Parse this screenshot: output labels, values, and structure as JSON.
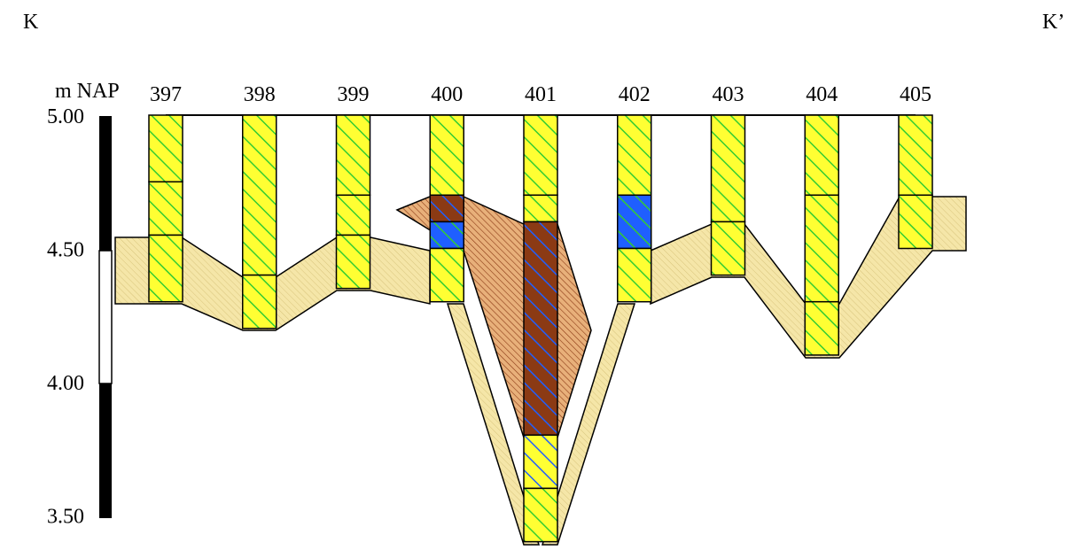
{
  "section": {
    "start_label": "K",
    "end_label": "K’"
  },
  "axis": {
    "unit_label": "m NAP",
    "ticks": [
      {
        "value": 5.0,
        "label": "5.00"
      },
      {
        "value": 4.5,
        "label": "4.50"
      },
      {
        "value": 4.0,
        "label": "4.00"
      },
      {
        "value": 3.5,
        "label": "3.50"
      }
    ],
    "range": [
      3.4,
      5.0
    ]
  },
  "colors": {
    "yellow": "#ffff33",
    "green_hatch": "#33cc33",
    "blue": "#1f5fff",
    "brown": "#8b3a14",
    "brown_hatch": "#e8b07a",
    "beige": "#f5e6a8",
    "beige_hatch": "#d8c47c",
    "outline": "#000000"
  },
  "boreholes": [
    {
      "id": "397",
      "top": 5.0,
      "bottom": 4.3,
      "layers": [
        {
          "from": 5.0,
          "to": 4.75,
          "type": "yellow-green"
        },
        {
          "from": 4.75,
          "to": 4.55,
          "type": "yellow-green"
        },
        {
          "from": 4.55,
          "to": 4.3,
          "type": "yellow-green"
        }
      ]
    },
    {
      "id": "398",
      "top": 5.0,
      "bottom": 4.2,
      "layers": [
        {
          "from": 5.0,
          "to": 4.4,
          "type": "yellow-green"
        },
        {
          "from": 4.4,
          "to": 4.2,
          "type": "yellow-green"
        }
      ]
    },
    {
      "id": "399",
      "top": 5.0,
      "bottom": 4.35,
      "layers": [
        {
          "from": 5.0,
          "to": 4.7,
          "type": "yellow-green"
        },
        {
          "from": 4.7,
          "to": 4.55,
          "type": "yellow-green"
        },
        {
          "from": 4.55,
          "to": 4.35,
          "type": "yellow-green"
        }
      ]
    },
    {
      "id": "400",
      "top": 5.0,
      "bottom": 4.3,
      "layers": [
        {
          "from": 5.0,
          "to": 4.7,
          "type": "yellow-green"
        },
        {
          "from": 4.7,
          "to": 4.6,
          "type": "brown-blue"
        },
        {
          "from": 4.6,
          "to": 4.5,
          "type": "blue-green"
        },
        {
          "from": 4.5,
          "to": 4.3,
          "type": "yellow-green"
        }
      ]
    },
    {
      "id": "401",
      "top": 5.0,
      "bottom": 3.4,
      "layers": [
        {
          "from": 5.0,
          "to": 4.7,
          "type": "yellow-green"
        },
        {
          "from": 4.7,
          "to": 4.6,
          "type": "yellow-green"
        },
        {
          "from": 4.6,
          "to": 3.8,
          "type": "brown-blue"
        },
        {
          "from": 3.8,
          "to": 3.6,
          "type": "yellow-blue"
        },
        {
          "from": 3.6,
          "to": 3.4,
          "type": "yellow-green"
        }
      ]
    },
    {
      "id": "402",
      "top": 5.0,
      "bottom": 4.3,
      "layers": [
        {
          "from": 5.0,
          "to": 4.7,
          "type": "yellow-green"
        },
        {
          "from": 4.7,
          "to": 4.5,
          "type": "blue-green"
        },
        {
          "from": 4.5,
          "to": 4.3,
          "type": "yellow-green"
        }
      ]
    },
    {
      "id": "403",
      "top": 5.0,
      "bottom": 4.4,
      "layers": [
        {
          "from": 5.0,
          "to": 4.6,
          "type": "yellow-green"
        },
        {
          "from": 4.6,
          "to": 4.4,
          "type": "yellow-green"
        }
      ]
    },
    {
      "id": "404",
      "top": 5.0,
      "bottom": 4.1,
      "layers": [
        {
          "from": 5.0,
          "to": 4.7,
          "type": "yellow-green"
        },
        {
          "from": 4.7,
          "to": 4.3,
          "type": "yellow-green"
        },
        {
          "from": 4.3,
          "to": 4.1,
          "type": "yellow-green"
        }
      ]
    },
    {
      "id": "405",
      "top": 5.0,
      "bottom": 4.5,
      "layers": [
        {
          "from": 5.0,
          "to": 4.7,
          "type": "yellow-green"
        },
        {
          "from": 4.7,
          "to": 4.5,
          "type": "yellow-green"
        }
      ]
    }
  ]
}
